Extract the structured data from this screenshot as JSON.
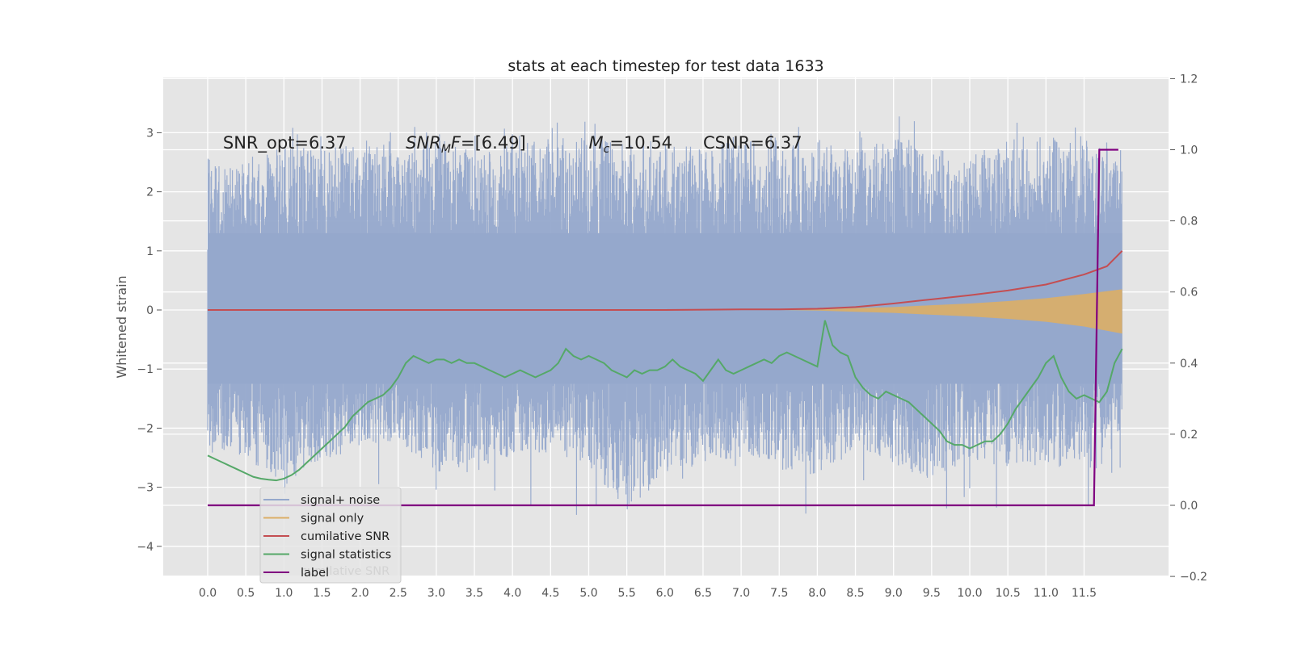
{
  "chart_data": {
    "type": "line",
    "title": "stats at each timestep for test data 1633",
    "ylabel": "Whitened strain",
    "xlabel": "",
    "xlim": [
      -0.25,
      12.3
    ],
    "ylim": [
      -4.5,
      3.9
    ],
    "y2lim": [
      -0.2,
      1.2
    ],
    "grid": true,
    "legend_position": "lower-left",
    "x_ticks": [
      "0.0",
      "0.5",
      "1.0",
      "1.5",
      "2.0",
      "2.5",
      "3.0",
      "3.5",
      "4.0",
      "4.5",
      "5.0",
      "5.5",
      "6.0",
      "6.5",
      "7.0",
      "7.5",
      "8.0",
      "8.5",
      "9.0",
      "9.5",
      "10.0",
      "10.5",
      "11.0",
      "11.5"
    ],
    "y_ticks": [
      "3",
      "2",
      "1",
      "0",
      "−1",
      "−2",
      "−3",
      "−4"
    ],
    "y2_ticks": [
      "1.2",
      "1.0",
      "0.8",
      "0.6",
      "0.4",
      "0.2",
      "0.0",
      "−0.2"
    ],
    "annotations": [
      {
        "text": "SNR_opt=6.37",
        "x": 0.2
      },
      {
        "base": "SNR",
        "sub": "M",
        "rest": "F=[6.49]",
        "x": 2.6
      },
      {
        "base": "M",
        "sub": "c",
        "rest": "=10.54",
        "x": 5.0
      },
      {
        "text": "CSNR=6.37",
        "x": 6.5
      }
    ],
    "colors": {
      "background": "#e5e5e5",
      "grid": "#ffffff",
      "noise": "#95a8cc",
      "signal": "#dcae66",
      "cumulative": "#c44e52",
      "stats": "#55a868",
      "label": "#800080"
    },
    "legend_ghost": "cumilative SNR",
    "series": [
      {
        "name": "signal+ noise",
        "axis": "left",
        "style": "noise-band",
        "x": [
          0.0,
          0.5,
          1.0,
          1.5,
          2.0,
          2.5,
          3.0,
          3.5,
          4.0,
          4.5,
          5.0,
          5.5,
          6.0,
          6.5,
          7.0,
          7.5,
          8.0,
          8.5,
          9.0,
          9.5,
          10.0,
          10.5,
          11.0,
          11.5,
          12.0
        ],
        "upper": [
          2.6,
          2.5,
          2.8,
          2.7,
          2.9,
          2.6,
          3.0,
          2.7,
          2.8,
          2.9,
          3.0,
          2.8,
          2.9,
          2.7,
          3.0,
          2.8,
          2.9,
          2.7,
          3.0,
          2.8,
          2.6,
          2.9,
          3.0,
          2.9,
          2.7
        ],
        "lower": [
          -2.3,
          -2.5,
          -3.0,
          -2.6,
          -2.3,
          -2.2,
          -2.8,
          -2.6,
          -2.5,
          -2.4,
          -2.7,
          -3.4,
          -2.8,
          -2.6,
          -2.5,
          -2.7,
          -2.8,
          -2.4,
          -2.6,
          -2.9,
          -2.5,
          -2.7,
          -2.6,
          -2.8,
          -2.0
        ]
      },
      {
        "name": "signal only",
        "axis": "left",
        "style": "signal-band",
        "x": [
          7.5,
          8.0,
          8.5,
          9.0,
          9.5,
          10.0,
          10.5,
          11.0,
          11.5,
          12.0
        ],
        "upper": [
          0.0,
          0.01,
          0.03,
          0.05,
          0.08,
          0.11,
          0.15,
          0.2,
          0.27,
          0.35
        ],
        "lower": [
          0.0,
          -0.01,
          -0.03,
          -0.05,
          -0.08,
          -0.11,
          -0.15,
          -0.2,
          -0.28,
          -0.4
        ]
      },
      {
        "name": "cumilative SNR",
        "axis": "left",
        "style": "line",
        "x": [
          0.0,
          1.0,
          2.0,
          3.0,
          4.0,
          5.0,
          6.0,
          7.0,
          7.5,
          8.0,
          8.5,
          9.0,
          9.5,
          10.0,
          10.5,
          11.0,
          11.5,
          11.8,
          12.0
        ],
        "y": [
          0.0,
          0.0,
          0.0,
          0.0,
          0.0,
          0.0,
          0.0,
          0.01,
          0.01,
          0.02,
          0.05,
          0.11,
          0.18,
          0.25,
          0.33,
          0.43,
          0.6,
          0.74,
          1.0
        ]
      },
      {
        "name": "signal statistics",
        "axis": "right",
        "style": "line",
        "x": [
          0.0,
          0.1,
          0.2,
          0.3,
          0.4,
          0.5,
          0.6,
          0.7,
          0.8,
          0.9,
          1.0,
          1.1,
          1.2,
          1.3,
          1.4,
          1.5,
          1.6,
          1.7,
          1.8,
          1.9,
          2.0,
          2.1,
          2.2,
          2.3,
          2.4,
          2.5,
          2.6,
          2.7,
          2.8,
          2.9,
          3.0,
          3.1,
          3.2,
          3.3,
          3.4,
          3.5,
          3.6,
          3.7,
          3.8,
          3.9,
          4.0,
          4.1,
          4.2,
          4.3,
          4.4,
          4.5,
          4.6,
          4.7,
          4.8,
          4.9,
          5.0,
          5.1,
          5.2,
          5.3,
          5.4,
          5.5,
          5.6,
          5.7,
          5.8,
          5.9,
          6.0,
          6.1,
          6.2,
          6.3,
          6.4,
          6.5,
          6.6,
          6.7,
          6.8,
          6.9,
          7.0,
          7.1,
          7.2,
          7.3,
          7.4,
          7.5,
          7.6,
          7.7,
          7.8,
          7.9,
          8.0,
          8.1,
          8.2,
          8.3,
          8.4,
          8.5,
          8.6,
          8.7,
          8.8,
          8.9,
          9.0,
          9.1,
          9.2,
          9.3,
          9.4,
          9.5,
          9.6,
          9.7,
          9.8,
          9.9,
          10.0,
          10.1,
          10.2,
          10.3,
          10.4,
          10.5,
          10.6,
          10.7,
          10.8,
          10.9,
          11.0,
          11.1,
          11.2,
          11.3,
          11.4,
          11.5,
          11.6,
          11.7,
          11.8,
          11.9,
          12.0
        ],
        "y": [
          0.14,
          0.13,
          0.12,
          0.11,
          0.1,
          0.09,
          0.08,
          0.075,
          0.072,
          0.07,
          0.075,
          0.085,
          0.1,
          0.12,
          0.14,
          0.16,
          0.18,
          0.2,
          0.22,
          0.25,
          0.27,
          0.29,
          0.3,
          0.31,
          0.33,
          0.36,
          0.4,
          0.42,
          0.41,
          0.4,
          0.41,
          0.41,
          0.4,
          0.41,
          0.4,
          0.4,
          0.39,
          0.38,
          0.37,
          0.36,
          0.37,
          0.38,
          0.37,
          0.36,
          0.37,
          0.38,
          0.4,
          0.44,
          0.42,
          0.41,
          0.42,
          0.41,
          0.4,
          0.38,
          0.37,
          0.36,
          0.38,
          0.37,
          0.38,
          0.38,
          0.39,
          0.41,
          0.39,
          0.38,
          0.37,
          0.35,
          0.38,
          0.41,
          0.38,
          0.37,
          0.38,
          0.39,
          0.4,
          0.41,
          0.4,
          0.42,
          0.43,
          0.42,
          0.41,
          0.4,
          0.39,
          0.52,
          0.45,
          0.43,
          0.42,
          0.36,
          0.33,
          0.31,
          0.3,
          0.32,
          0.31,
          0.3,
          0.29,
          0.27,
          0.25,
          0.23,
          0.21,
          0.18,
          0.17,
          0.17,
          0.16,
          0.17,
          0.18,
          0.18,
          0.2,
          0.23,
          0.27,
          0.3,
          0.33,
          0.36,
          0.4,
          0.42,
          0.36,
          0.32,
          0.3,
          0.31,
          0.3,
          0.29,
          0.32,
          0.4,
          0.44
        ]
      },
      {
        "name": "label",
        "axis": "right",
        "style": "step",
        "x": [
          0.0,
          11.63,
          11.7,
          11.95
        ],
        "y": [
          0.0,
          0.0,
          1.0,
          1.0
        ]
      }
    ]
  }
}
